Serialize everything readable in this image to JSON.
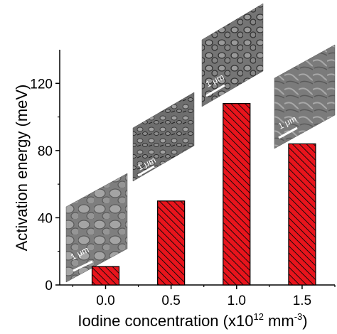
{
  "chart_data": {
    "type": "bar",
    "x": [
      0.0,
      0.5,
      1.0,
      1.5
    ],
    "values": [
      11,
      50,
      108,
      84
    ],
    "xlabel_main": "Iodine concentration (x10",
    "xlabel_sup1": "12",
    "xlabel_mid": " mm",
    "xlabel_sup2": "-3",
    "xlabel_end": ")",
    "ylabel": "Activation energy (meV)",
    "xlim": [
      -0.35,
      1.75
    ],
    "ylim": [
      0,
      140
    ],
    "xticks": [
      0.0,
      0.5,
      1.0,
      1.5
    ],
    "xtick_labels": [
      "0.0",
      "0.5",
      "1.0",
      "1.5"
    ],
    "yticks": [
      0,
      40,
      80,
      120
    ],
    "ytick_labels": [
      "0",
      "40",
      "80",
      "120"
    ],
    "bar_color": "#e8141c",
    "bar_hatch": "diagonal",
    "grid": false,
    "legend": "none",
    "inset_scale_label": "1 μm"
  }
}
